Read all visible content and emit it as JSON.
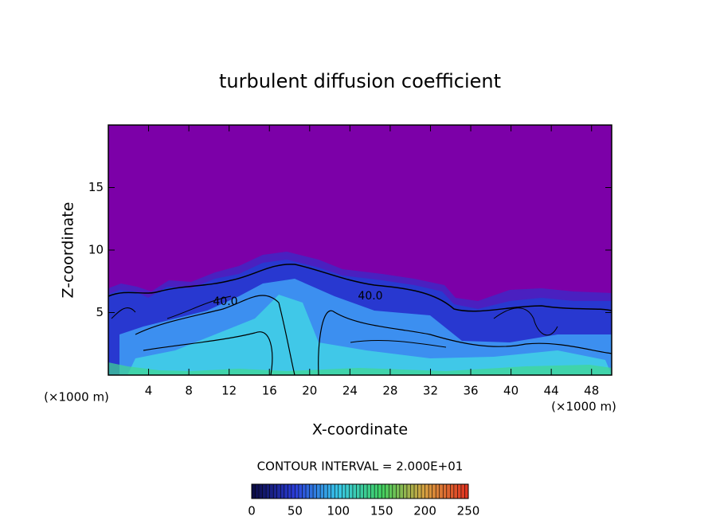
{
  "chart_data": {
    "type": "contour",
    "title": "turbulent diffusion coefficient",
    "x_label": "X-coordinate",
    "y_label": "Z-coordinate",
    "x_unit": "(×1000 m)",
    "y_unit": "(×1000 m)",
    "xlim": [
      0,
      50
    ],
    "xticks": [
      4,
      8,
      12,
      16,
      20,
      24,
      28,
      32,
      36,
      40,
      44,
      48
    ],
    "ylim": [
      0,
      20
    ],
    "yticks": [
      5,
      10,
      15
    ],
    "contour_labels": [
      "40.0",
      "40.0"
    ],
    "contour_interval": "CONTOUR INTERVAL = 2.000E+01",
    "colorbar": {
      "lim": [
        0,
        250
      ],
      "ticks": [
        0,
        50,
        100,
        150,
        200,
        250
      ],
      "colors": [
        "#0a0a40",
        "#2a3cd8",
        "#38c8e8",
        "#40d060",
        "#d8a040",
        "#e03020"
      ]
    }
  }
}
